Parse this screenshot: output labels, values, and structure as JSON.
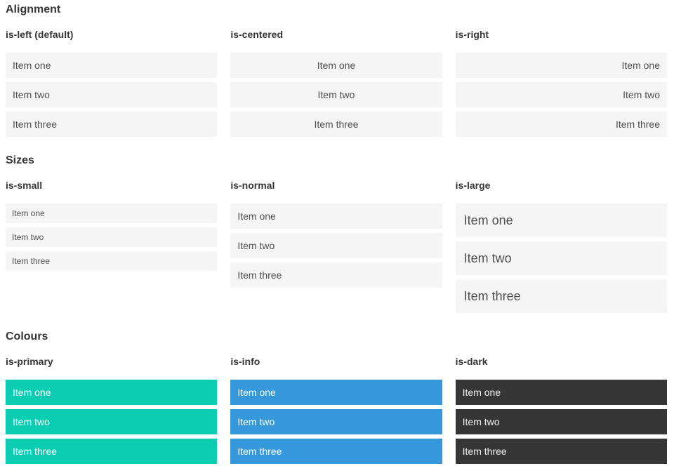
{
  "colors": {
    "primary": "#0bcdb2",
    "info": "#3598db",
    "dark": "#363636",
    "item_background": "#f5f5f5",
    "item_text": "#4f4f4f",
    "heading_text": "#363636"
  },
  "sections": [
    {
      "title": "Alignment",
      "columns": [
        {
          "label": "is-left (default)",
          "variant": "left",
          "items": [
            "Item one",
            "Item two",
            "Item three"
          ]
        },
        {
          "label": "is-centered",
          "variant": "centered",
          "items": [
            "Item one",
            "Item two",
            "Item three"
          ]
        },
        {
          "label": "is-right",
          "variant": "right",
          "items": [
            "Item one",
            "Item two",
            "Item three"
          ]
        }
      ]
    },
    {
      "title": "Sizes",
      "columns": [
        {
          "label": "is-small",
          "variant": "small",
          "items": [
            "Item one",
            "Item two",
            "Item three"
          ]
        },
        {
          "label": "is-normal",
          "variant": "normal",
          "items": [
            "Item one",
            "Item two",
            "Item three"
          ]
        },
        {
          "label": "is-large",
          "variant": "large",
          "items": [
            "Item one",
            "Item two",
            "Item three"
          ]
        }
      ]
    },
    {
      "title": "Colours",
      "columns": [
        {
          "label": "is-primary",
          "variant": "primary",
          "items": [
            "Item one",
            "Item two",
            "Item three"
          ]
        },
        {
          "label": "is-info",
          "variant": "info",
          "items": [
            "Item one",
            "Item two",
            "Item three"
          ]
        },
        {
          "label": "is-dark",
          "variant": "dark",
          "items": [
            "Item one",
            "Item two",
            "Item three"
          ]
        }
      ]
    }
  ]
}
